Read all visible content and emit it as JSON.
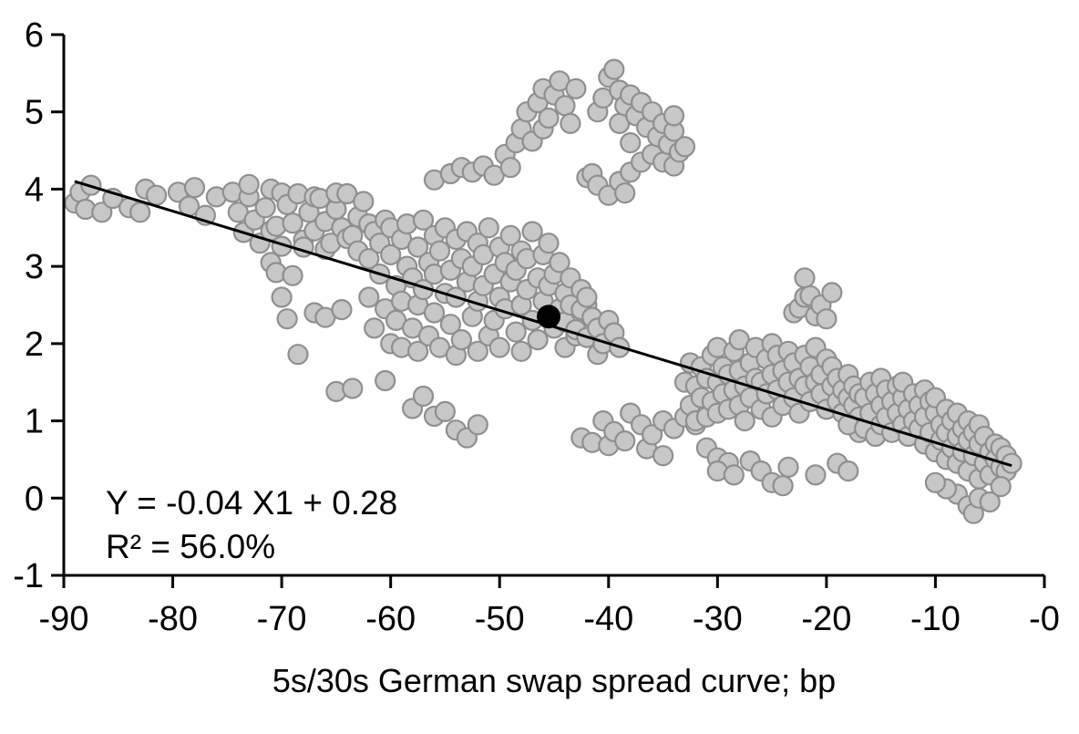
{
  "chart_data": {
    "type": "scatter",
    "title": "",
    "xlabel": "5s/30s German swap spread curve; bp",
    "ylabel": "",
    "xlim": [
      -90,
      0
    ],
    "ylim": [
      -1,
      6
    ],
    "grid": false,
    "legend": "none",
    "xticks": [
      -90,
      -80,
      -70,
      -60,
      -50,
      -40,
      -30,
      -20,
      -10,
      0
    ],
    "xtick_labels": [
      "-90",
      "-80",
      "-70",
      "-60",
      "-50",
      "-40",
      "-30",
      "-20",
      "-10",
      "-0"
    ],
    "yticks": [
      -1,
      0,
      1,
      2,
      3,
      4,
      5,
      6
    ],
    "ytick_labels": [
      "-1",
      "0",
      "1",
      "2",
      "3",
      "4",
      "5",
      "6"
    ],
    "annotation": {
      "equation": "Y = -0.04 X1 + 0.28",
      "r_squared": "R² = 56.0%"
    },
    "regression": {
      "slope": -0.04,
      "intercept": 0.28,
      "r2_percent": 56.0,
      "draw_from": [
        -89,
        4.1
      ],
      "draw_to": [
        -3,
        0.42
      ],
      "color": "#000000"
    },
    "mean_point": {
      "x": -45.5,
      "y": 2.35,
      "radius": 13,
      "color": "#000000"
    },
    "point_style": {
      "fill": "#c7c7c7",
      "stroke": "#8f8f8f",
      "stroke_width": 2.2,
      "radius": 10.5
    },
    "axis_color": "#000000",
    "points": [
      [
        -89,
        3.82
      ],
      [
        -88.5,
        3.96
      ],
      [
        -88,
        3.74
      ],
      [
        -87.5,
        4.05
      ],
      [
        -86.5,
        3.7
      ],
      [
        -85.5,
        3.88
      ],
      [
        -84,
        3.76
      ],
      [
        -83,
        3.7
      ],
      [
        -82.5,
        4.0
      ],
      [
        -81.5,
        3.92
      ],
      [
        -79.5,
        3.96
      ],
      [
        -78.5,
        3.78
      ],
      [
        -78,
        4.02
      ],
      [
        -77,
        3.66
      ],
      [
        -76,
        3.9
      ],
      [
        -74.5,
        3.96
      ],
      [
        -74,
        3.7
      ],
      [
        -73.5,
        3.44
      ],
      [
        -73,
        3.9
      ],
      [
        -73,
        4.06
      ],
      [
        -72.5,
        3.6
      ],
      [
        -72,
        3.3
      ],
      [
        -71.5,
        3.76
      ],
      [
        -71,
        4.0
      ],
      [
        -71,
        3.46
      ],
      [
        -70.5,
        3.52
      ],
      [
        -70,
        3.26
      ],
      [
        -70,
        3.95
      ],
      [
        -69.5,
        3.8
      ],
      [
        -69,
        3.56
      ],
      [
        -68.5,
        3.94
      ],
      [
        -68,
        3.34
      ],
      [
        -68,
        3.25
      ],
      [
        -67.5,
        3.7
      ],
      [
        -67,
        3.46
      ],
      [
        -67,
        3.9
      ],
      [
        -66.5,
        3.88
      ],
      [
        -66,
        3.58
      ],
      [
        -66,
        3.22
      ],
      [
        -65.5,
        3.3
      ],
      [
        -65,
        3.74
      ],
      [
        -65,
        3.95
      ],
      [
        -64.5,
        3.5
      ],
      [
        -64,
        3.94
      ],
      [
        -64,
        3.36
      ],
      [
        -63.5,
        3.4
      ],
      [
        -63,
        3.64
      ],
      [
        -63,
        3.2
      ],
      [
        -62.5,
        3.84
      ],
      [
        -62,
        3.55
      ],
      [
        -71,
        3.05
      ],
      [
        -70.5,
        2.92
      ],
      [
        -70,
        2.6
      ],
      [
        -69.5,
        2.32
      ],
      [
        -69,
        2.88
      ],
      [
        -68.5,
        1.86
      ],
      [
        -67,
        2.4
      ],
      [
        -66,
        2.34
      ],
      [
        -64.5,
        2.44
      ],
      [
        -65,
        1.38
      ],
      [
        -63.5,
        1.42
      ],
      [
        -60.5,
        1.52
      ],
      [
        -58,
        1.16
      ],
      [
        -57,
        1.32
      ],
      [
        -56,
        1.06
      ],
      [
        -55,
        1.12
      ],
      [
        -54,
        0.88
      ],
      [
        -53,
        0.78
      ],
      [
        -52,
        0.95
      ],
      [
        -62,
        3.1
      ],
      [
        -62,
        2.6
      ],
      [
        -61.5,
        3.45
      ],
      [
        -61.5,
        2.2
      ],
      [
        -61,
        2.9
      ],
      [
        -61,
        3.3
      ],
      [
        -60.5,
        2.45
      ],
      [
        -60.5,
        3.6
      ],
      [
        -60,
        2.0
      ],
      [
        -60,
        3.15
      ],
      [
        -60,
        3.5
      ],
      [
        -59.5,
        2.75
      ],
      [
        -59.5,
        2.3
      ],
      [
        -59,
        3.35
      ],
      [
        -59,
        1.95
      ],
      [
        -59,
        2.55
      ],
      [
        -58.5,
        3.0
      ],
      [
        -58.5,
        3.55
      ],
      [
        -58,
        2.2
      ],
      [
        -58,
        2.85
      ],
      [
        -57.5,
        3.25
      ],
      [
        -57.5,
        1.9
      ],
      [
        -57.5,
        2.5
      ],
      [
        -57,
        3.6
      ],
      [
        -57,
        2.7
      ],
      [
        -56.5,
        2.1
      ],
      [
        -56.5,
        3.05
      ],
      [
        -56,
        3.4
      ],
      [
        -56,
        2.4
      ],
      [
        -56,
        2.9
      ],
      [
        -55.5,
        1.95
      ],
      [
        -55.5,
        3.2
      ],
      [
        -55,
        2.65
      ],
      [
        -55,
        3.5
      ],
      [
        -54.5,
        2.25
      ],
      [
        -54.5,
        2.95
      ],
      [
        -54,
        3.35
      ],
      [
        -54,
        1.85
      ],
      [
        -54,
        2.6
      ],
      [
        -53.5,
        3.1
      ],
      [
        -53.5,
        2.05
      ],
      [
        -53,
        2.8
      ],
      [
        -53,
        3.45
      ],
      [
        -52.5,
        2.35
      ],
      [
        -52.5,
        3.0
      ],
      [
        -52,
        1.9
      ],
      [
        -52,
        3.3
      ],
      [
        -52,
        2.55
      ],
      [
        -51.5,
        2.75
      ],
      [
        -51.5,
        3.15
      ],
      [
        -51,
        2.1
      ],
      [
        -51,
        3.5
      ],
      [
        -50.5,
        2.9
      ],
      [
        -50.5,
        2.3
      ],
      [
        -50,
        3.25
      ],
      [
        -50,
        1.95
      ],
      [
        -50,
        2.6
      ],
      [
        -49.5,
        3.05
      ],
      [
        -49.5,
        2.45
      ],
      [
        -49,
        2.8
      ],
      [
        -49,
        3.4
      ],
      [
        -48.5,
        2.15
      ],
      [
        -48.5,
        2.95
      ],
      [
        -48,
        3.2
      ],
      [
        -48,
        2.5
      ],
      [
        -48,
        1.9
      ],
      [
        -47.5,
        2.7
      ],
      [
        -47.5,
        3.1
      ],
      [
        -47,
        2.3
      ],
      [
        -47,
        3.45
      ],
      [
        -46.5,
        2.85
      ],
      [
        -46.5,
        2.05
      ],
      [
        -46,
        3.15
      ],
      [
        -46,
        2.55
      ],
      [
        -45.5,
        2.75
      ],
      [
        -45.5,
        3.3
      ],
      [
        -45,
        2.2
      ],
      [
        -45,
        2.9
      ],
      [
        -44.5,
        2.45
      ],
      [
        -44.5,
        3.05
      ],
      [
        -44,
        2.65
      ],
      [
        -44,
        1.95
      ],
      [
        -43.5,
        2.85
      ],
      [
        -43.5,
        2.3
      ],
      [
        -43,
        2.5
      ],
      [
        -43,
        2.1
      ],
      [
        -42.5,
        2.35
      ],
      [
        -42.5,
        2.7
      ],
      [
        -42,
        2.2
      ],
      [
        -42,
        2.5
      ],
      [
        -56,
        4.12
      ],
      [
        -54.5,
        4.2
      ],
      [
        -53.5,
        4.28
      ],
      [
        -52.5,
        4.22
      ],
      [
        -51.5,
        4.3
      ],
      [
        -50.5,
        4.18
      ],
      [
        -49.5,
        4.45
      ],
      [
        -49,
        4.28
      ],
      [
        -48.5,
        4.6
      ],
      [
        -48,
        4.78
      ],
      [
        -47.5,
        5.0
      ],
      [
        -47,
        4.62
      ],
      [
        -46.5,
        5.12
      ],
      [
        -46,
        5.3
      ],
      [
        -46,
        4.78
      ],
      [
        -45.5,
        4.92
      ],
      [
        -45,
        5.22
      ],
      [
        -44.5,
        5.4
      ],
      [
        -44,
        5.08
      ],
      [
        -43.5,
        4.85
      ],
      [
        -43,
        5.3
      ],
      [
        -42,
        4.15
      ],
      [
        -41.5,
        4.2
      ],
      [
        -41,
        4.05
      ],
      [
        -41,
        5.0
      ],
      [
        -40.5,
        5.18
      ],
      [
        -40,
        5.45
      ],
      [
        -40,
        3.92
      ],
      [
        -39.5,
        5.55
      ],
      [
        -39,
        5.28
      ],
      [
        -39,
        4.85
      ],
      [
        -39,
        4.1
      ],
      [
        -38.5,
        5.08
      ],
      [
        -38.5,
        3.95
      ],
      [
        -38,
        5.22
      ],
      [
        -38,
        4.6
      ],
      [
        -38,
        4.22
      ],
      [
        -37.5,
        4.95
      ],
      [
        -37,
        5.12
      ],
      [
        -37,
        4.35
      ],
      [
        -36.5,
        4.8
      ],
      [
        -36,
        5.0
      ],
      [
        -36,
        4.45
      ],
      [
        -35.5,
        4.68
      ],
      [
        -35,
        4.85
      ],
      [
        -35,
        4.35
      ],
      [
        -34.5,
        4.58
      ],
      [
        -34,
        4.75
      ],
      [
        -34,
        4.3
      ],
      [
        -34,
        4.95
      ],
      [
        -33.5,
        4.48
      ],
      [
        -33,
        4.55
      ],
      [
        -44,
        2.28
      ],
      [
        -43.5,
        2.5
      ],
      [
        -43,
        2.18
      ],
      [
        -42.5,
        2.44
      ],
      [
        -42,
        2.08
      ],
      [
        -42,
        2.6
      ],
      [
        -41.5,
        2.34
      ],
      [
        -41,
        2.2
      ],
      [
        -41,
        1.86
      ],
      [
        -40.5,
        2.0
      ],
      [
        -40,
        2.3
      ],
      [
        -39.5,
        2.14
      ],
      [
        -39,
        1.95
      ],
      [
        -42.5,
        0.78
      ],
      [
        -41.5,
        0.72
      ],
      [
        -40.5,
        1.0
      ],
      [
        -40,
        0.68
      ],
      [
        -39.5,
        0.86
      ],
      [
        -38.5,
        0.74
      ],
      [
        -38,
        1.1
      ],
      [
        -37,
        0.95
      ],
      [
        -36.5,
        0.64
      ],
      [
        -36,
        0.82
      ],
      [
        -35,
        1.0
      ],
      [
        -35,
        0.55
      ],
      [
        -34,
        0.9
      ],
      [
        -33,
        1.05
      ],
      [
        -32,
        0.95
      ],
      [
        -31,
        0.65
      ],
      [
        -30,
        0.52
      ],
      [
        -29,
        0.46
      ],
      [
        -33,
        1.5
      ],
      [
        -32.5,
        1.2
      ],
      [
        -32.5,
        1.75
      ],
      [
        -32,
        1.45
      ],
      [
        -32,
        1.0
      ],
      [
        -31.5,
        1.7
      ],
      [
        -31.5,
        1.3
      ],
      [
        -31,
        1.05
      ],
      [
        -31,
        1.55
      ],
      [
        -30.5,
        1.85
      ],
      [
        -30.5,
        1.25
      ],
      [
        -30,
        1.5
      ],
      [
        -30,
        1.1
      ],
      [
        -30,
        1.95
      ],
      [
        -29.5,
        1.35
      ],
      [
        -29.5,
        1.7
      ],
      [
        -29,
        1.15
      ],
      [
        -29,
        1.6
      ],
      [
        -28.5,
        1.9
      ],
      [
        -28.5,
        1.4
      ],
      [
        -28,
        1.2
      ],
      [
        -28,
        1.65
      ],
      [
        -28,
        2.05
      ],
      [
        -27.5,
        1.45
      ],
      [
        -27.5,
        1.0
      ],
      [
        -27,
        1.75
      ],
      [
        -27,
        1.3
      ],
      [
        -26.5,
        1.55
      ],
      [
        -26.5,
        1.95
      ],
      [
        -26,
        1.15
      ],
      [
        -26,
        1.5
      ],
      [
        -25.5,
        1.8
      ],
      [
        -25.5,
        1.35
      ],
      [
        -25,
        1.6
      ],
      [
        -25,
        1.05
      ],
      [
        -25,
        2.0
      ],
      [
        -24.5,
        1.4
      ],
      [
        -24.5,
        1.85
      ],
      [
        -24,
        1.2
      ],
      [
        -24,
        1.65
      ],
      [
        -23.5,
        1.5
      ],
      [
        -23.5,
        1.9
      ],
      [
        -23,
        1.3
      ],
      [
        -23,
        1.75
      ],
      [
        -22.5,
        1.55
      ],
      [
        -22.5,
        1.1
      ],
      [
        -22,
        1.85
      ],
      [
        -22,
        1.45
      ],
      [
        -21.5,
        1.25
      ],
      [
        -21.5,
        1.7
      ],
      [
        -21,
        1.5
      ],
      [
        -21,
        1.95
      ],
      [
        -20.5,
        1.35
      ],
      [
        -20.5,
        1.6
      ],
      [
        -20,
        1.15
      ],
      [
        -20,
        1.8
      ],
      [
        -19.5,
        1.45
      ],
      [
        -19.5,
        1.7
      ],
      [
        -19,
        1.25
      ],
      [
        -19,
        1.55
      ],
      [
        -18.5,
        1.4
      ],
      [
        -18.5,
        1.1
      ],
      [
        -18,
        1.6
      ],
      [
        -18,
        1.3
      ],
      [
        -17.5,
        1.2
      ],
      [
        -17.5,
        1.45
      ],
      [
        -17,
        1.35
      ],
      [
        -17,
        1.05
      ],
      [
        -17,
        0.85
      ],
      [
        -18,
        0.95
      ],
      [
        -23,
        2.4
      ],
      [
        -22.5,
        2.46
      ],
      [
        -22,
        2.85
      ],
      [
        -22,
        2.6
      ],
      [
        -21.5,
        2.62
      ],
      [
        -21,
        2.36
      ],
      [
        -20.5,
        2.5
      ],
      [
        -20,
        2.32
      ],
      [
        -19.5,
        2.66
      ],
      [
        -30,
        0.35
      ],
      [
        -28.5,
        0.3
      ],
      [
        -27,
        0.48
      ],
      [
        -26,
        0.35
      ],
      [
        -25,
        0.2
      ],
      [
        -24,
        0.16
      ],
      [
        -23.5,
        0.4
      ],
      [
        -21,
        0.3
      ],
      [
        -19,
        0.45
      ],
      [
        -18,
        0.35
      ],
      [
        -16.5,
        1.3
      ],
      [
        -16.5,
        0.9
      ],
      [
        -16,
        1.5
      ],
      [
        -16,
        1.1
      ],
      [
        -15.5,
        0.8
      ],
      [
        -15.5,
        1.35
      ],
      [
        -15,
        1.2
      ],
      [
        -15,
        1.55
      ],
      [
        -15,
        0.95
      ],
      [
        -14.5,
        1.4
      ],
      [
        -14.5,
        1.05
      ],
      [
        -14,
        0.85
      ],
      [
        -14,
        1.25
      ],
      [
        -13.5,
        1.45
      ],
      [
        -13.5,
        1.1
      ],
      [
        -13,
        0.95
      ],
      [
        -13,
        1.3
      ],
      [
        -13,
        1.5
      ],
      [
        -12.5,
        1.15
      ],
      [
        -12.5,
        0.8
      ],
      [
        -12,
        1.35
      ],
      [
        -12,
        1.0
      ],
      [
        -11.5,
        0.9
      ],
      [
        -11.5,
        1.2
      ],
      [
        -11,
        1.4
      ],
      [
        -11,
        1.05
      ],
      [
        -11,
        0.7
      ],
      [
        -10.5,
        1.25
      ],
      [
        -10.5,
        0.85
      ],
      [
        -10,
        1.1
      ],
      [
        -10,
        0.6
      ],
      [
        -10,
        1.3
      ],
      [
        -9.5,
        0.95
      ],
      [
        -9.5,
        0.75
      ],
      [
        -9,
        1.15
      ],
      [
        -9,
        0.5
      ],
      [
        -9,
        0.85
      ],
      [
        -8.5,
        0.65
      ],
      [
        -8.5,
        1.0
      ],
      [
        -8,
        0.8
      ],
      [
        -8,
        0.45
      ],
      [
        -8,
        1.1
      ],
      [
        -7.5,
        0.6
      ],
      [
        -7.5,
        0.9
      ],
      [
        -7,
        0.75
      ],
      [
        -7,
        0.35
      ],
      [
        -7,
        1.0
      ],
      [
        -6.5,
        0.55
      ],
      [
        -6.5,
        0.85
      ],
      [
        -6,
        0.7
      ],
      [
        -6,
        0.25
      ],
      [
        -6,
        0.95
      ],
      [
        -5.5,
        0.45
      ],
      [
        -5.5,
        0.8
      ],
      [
        -5,
        0.6
      ],
      [
        -5,
        0.3
      ],
      [
        -4.5,
        0.7
      ],
      [
        -4.5,
        0.5
      ],
      [
        -4,
        0.4
      ],
      [
        -4,
        0.65
      ],
      [
        -3.5,
        0.55
      ],
      [
        -3.5,
        0.35
      ],
      [
        -3,
        0.45
      ],
      [
        -8,
        0.05
      ],
      [
        -7,
        -0.1
      ],
      [
        -6.5,
        -0.2
      ],
      [
        -6,
        0.0
      ],
      [
        -5,
        -0.05
      ],
      [
        -9,
        0.12
      ],
      [
        -10,
        0.2
      ],
      [
        -4,
        0.15
      ]
    ]
  }
}
